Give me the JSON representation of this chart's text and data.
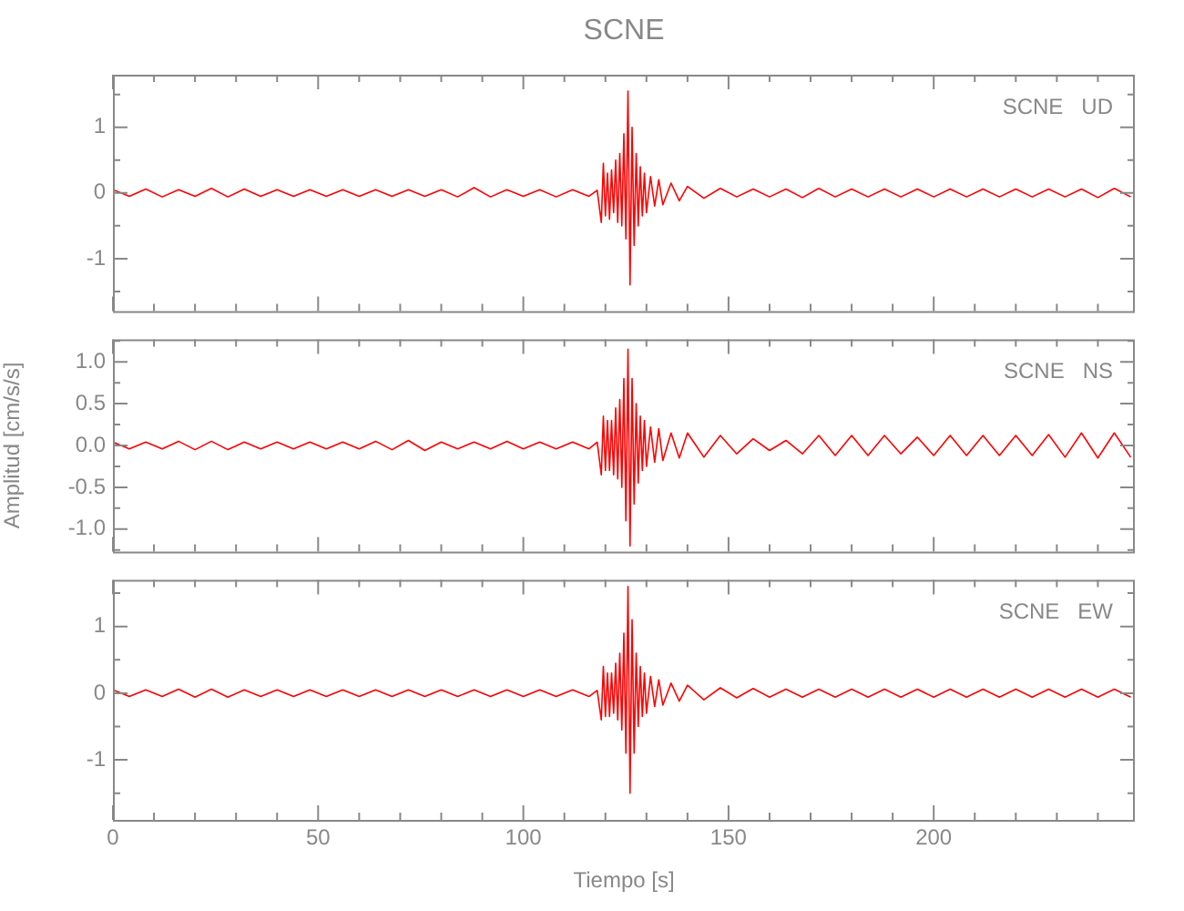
{
  "chart_data": [
    {
      "type": "line",
      "title": "SCNE",
      "annotations": [
        "SCNE   UD"
      ],
      "tick_labels": "y",
      "xlim": [
        0,
        249
      ],
      "xticks": [
        0,
        {
          "value": 10,
          "label": null
        },
        {
          "value": 20,
          "label": null
        },
        {
          "value": 30,
          "label": null
        },
        {
          "value": 40,
          "label": null
        },
        50,
        {
          "value": 60,
          "label": null
        },
        {
          "value": 70,
          "label": null
        },
        {
          "value": 80,
          "label": null
        },
        {
          "value": 90,
          "label": null
        },
        100,
        {
          "value": 110,
          "label": null
        },
        {
          "value": 120,
          "label": null
        },
        {
          "value": 130,
          "label": null
        },
        {
          "value": 140,
          "label": null
        },
        150,
        {
          "value": 160,
          "label": null
        },
        {
          "value": 170,
          "label": null
        },
        {
          "value": 180,
          "label": null
        },
        {
          "value": 190,
          "label": null
        },
        200,
        {
          "value": 210,
          "label": null
        },
        {
          "value": 220,
          "label": null
        },
        {
          "value": 230,
          "label": null
        },
        {
          "value": 240,
          "label": null
        }
      ],
      "ylim": [
        -1.8,
        1.8
      ],
      "yticks": [
        {
          "value": -1.5,
          "label": null
        },
        -1,
        {
          "value": -0.5,
          "label": null
        },
        0,
        {
          "value": 0.5,
          "label": null
        },
        1,
        {
          "value": 1.5,
          "label": null
        }
      ],
      "x": [
        0,
        4,
        8,
        12,
        16,
        20,
        24,
        28,
        32,
        36,
        40,
        44,
        48,
        52,
        56,
        60,
        64,
        68,
        72,
        76,
        80,
        84,
        88,
        92,
        96,
        100,
        104,
        108,
        112,
        116,
        118,
        119,
        119.5,
        120,
        120.5,
        121,
        121.5,
        122,
        122.5,
        123,
        123.5,
        124,
        124.5,
        125,
        125.5,
        126,
        126.5,
        127,
        127.5,
        128,
        128.5,
        129,
        129.5,
        130,
        131,
        132,
        133,
        134,
        136,
        138,
        140,
        144,
        148,
        152,
        156,
        160,
        164,
        168,
        172,
        176,
        180,
        184,
        188,
        192,
        196,
        200,
        204,
        208,
        212,
        216,
        220,
        224,
        228,
        232,
        236,
        240,
        244,
        248
      ],
      "series": [
        {
          "color": "#ff0000",
          "values": [
            0.05,
            -0.05,
            0.06,
            -0.06,
            0.05,
            -0.05,
            0.07,
            -0.06,
            0.06,
            -0.05,
            0.05,
            -0.05,
            0.05,
            -0.05,
            0.05,
            -0.05,
            0.05,
            -0.05,
            0.05,
            -0.05,
            0.05,
            -0.06,
            0.08,
            -0.06,
            0.05,
            -0.05,
            0.05,
            -0.06,
            0.05,
            -0.05,
            0.04,
            -0.45,
            0.45,
            -0.35,
            0.3,
            -0.4,
            0.35,
            -0.3,
            0.5,
            -0.45,
            0.6,
            -0.5,
            0.9,
            -0.7,
            1.55,
            -1.4,
            1.0,
            -0.8,
            0.6,
            -0.5,
            0.4,
            -0.35,
            0.3,
            -0.3,
            0.25,
            -0.2,
            0.2,
            -0.18,
            0.15,
            -0.12,
            0.1,
            -0.08,
            0.07,
            -0.06,
            0.06,
            -0.06,
            0.06,
            -0.07,
            0.07,
            -0.06,
            0.06,
            -0.06,
            0.06,
            -0.06,
            0.06,
            -0.06,
            0.06,
            -0.06,
            0.06,
            -0.06,
            0.06,
            -0.06,
            0.06,
            -0.06,
            0.06,
            -0.07,
            0.07,
            -0.06
          ]
        }
      ]
    },
    {
      "type": "line",
      "annotations": [
        "SCNE   NS"
      ],
      "ylabel": "Amplitud [cm/s/s]",
      "tick_labels": "y",
      "xlim": [
        0,
        249
      ],
      "xticks": [
        0,
        {
          "value": 10,
          "label": null
        },
        {
          "value": 20,
          "label": null
        },
        {
          "value": 30,
          "label": null
        },
        {
          "value": 40,
          "label": null
        },
        50,
        {
          "value": 60,
          "label": null
        },
        {
          "value": 70,
          "label": null
        },
        {
          "value": 80,
          "label": null
        },
        {
          "value": 90,
          "label": null
        },
        100,
        {
          "value": 110,
          "label": null
        },
        {
          "value": 120,
          "label": null
        },
        {
          "value": 130,
          "label": null
        },
        {
          "value": 140,
          "label": null
        },
        150,
        {
          "value": 160,
          "label": null
        },
        {
          "value": 170,
          "label": null
        },
        {
          "value": 180,
          "label": null
        },
        {
          "value": 190,
          "label": null
        },
        200,
        {
          "value": 210,
          "label": null
        },
        {
          "value": 220,
          "label": null
        },
        {
          "value": 230,
          "label": null
        },
        {
          "value": 240,
          "label": null
        }
      ],
      "ylim": [
        -1.27,
        1.27
      ],
      "yticks": [
        {
          "value": -1.25,
          "label": null
        },
        {
          "value": -1,
          "label": "-1.0"
        },
        {
          "value": -0.75,
          "label": null
        },
        {
          "value": -0.5,
          "label": "-0.5"
        },
        {
          "value": -0.25,
          "label": null
        },
        {
          "value": 0,
          "label": "0.0"
        },
        {
          "value": 0.25,
          "label": null
        },
        {
          "value": 0.5,
          "label": "0.5"
        },
        {
          "value": 0.75,
          "label": null
        },
        {
          "value": 1,
          "label": "1.0"
        },
        {
          "value": 1.25,
          "label": null
        }
      ],
      "x": [
        0,
        4,
        8,
        12,
        16,
        20,
        24,
        28,
        32,
        36,
        40,
        44,
        48,
        52,
        56,
        60,
        64,
        68,
        72,
        76,
        80,
        84,
        88,
        92,
        96,
        100,
        104,
        108,
        112,
        116,
        118,
        119,
        119.5,
        120,
        120.5,
        121,
        121.5,
        122,
        122.5,
        123,
        123.5,
        124,
        124.5,
        125,
        125.5,
        126,
        126.5,
        127,
        127.5,
        128,
        128.5,
        129,
        129.5,
        130,
        131,
        132,
        133,
        134,
        136,
        138,
        140,
        144,
        148,
        152,
        156,
        160,
        164,
        168,
        172,
        176,
        180,
        184,
        188,
        192,
        196,
        200,
        204,
        208,
        212,
        216,
        220,
        224,
        228,
        232,
        236,
        240,
        244,
        248
      ],
      "series": [
        {
          "color": "#ff0000",
          "values": [
            0.04,
            -0.04,
            0.04,
            -0.04,
            0.05,
            -0.05,
            0.05,
            -0.05,
            0.04,
            -0.04,
            0.04,
            -0.04,
            0.04,
            -0.04,
            0.04,
            -0.04,
            0.05,
            -0.05,
            0.06,
            -0.06,
            0.04,
            -0.04,
            0.04,
            -0.04,
            0.05,
            -0.04,
            0.04,
            -0.04,
            0.04,
            -0.04,
            0.04,
            -0.35,
            0.35,
            -0.3,
            0.3,
            -0.3,
            0.3,
            -0.35,
            0.45,
            -0.4,
            0.55,
            -0.5,
            0.8,
            -0.9,
            1.15,
            -1.2,
            0.8,
            -0.7,
            0.5,
            -0.45,
            0.35,
            -0.3,
            0.3,
            -0.25,
            0.22,
            -0.2,
            0.2,
            -0.18,
            0.15,
            -0.15,
            0.15,
            -0.14,
            0.12,
            -0.1,
            0.08,
            -0.06,
            0.06,
            -0.1,
            0.12,
            -0.12,
            0.12,
            -0.12,
            0.12,
            -0.1,
            0.1,
            -0.12,
            0.12,
            -0.12,
            0.12,
            -0.12,
            0.12,
            -0.12,
            0.13,
            -0.14,
            0.15,
            -0.15,
            0.15,
            -0.14
          ]
        }
      ]
    },
    {
      "type": "line",
      "annotations": [
        "SCNE   EW"
      ],
      "xlabel": "Tiempo [s]",
      "xlim": [
        0,
        249
      ],
      "xticks": [
        0,
        {
          "value": 10,
          "label": null
        },
        {
          "value": 20,
          "label": null
        },
        {
          "value": 30,
          "label": null
        },
        {
          "value": 40,
          "label": null
        },
        50,
        {
          "value": 60,
          "label": null
        },
        {
          "value": 70,
          "label": null
        },
        {
          "value": 80,
          "label": null
        },
        {
          "value": 90,
          "label": null
        },
        100,
        {
          "value": 110,
          "label": null
        },
        {
          "value": 120,
          "label": null
        },
        {
          "value": 130,
          "label": null
        },
        {
          "value": 140,
          "label": null
        },
        150,
        {
          "value": 160,
          "label": null
        },
        {
          "value": 170,
          "label": null
        },
        {
          "value": 180,
          "label": null
        },
        {
          "value": 190,
          "label": null
        },
        200,
        {
          "value": 210,
          "label": null
        },
        {
          "value": 220,
          "label": null
        },
        {
          "value": 230,
          "label": null
        },
        {
          "value": 240,
          "label": null
        }
      ],
      "ylim": [
        -1.9,
        1.7
      ],
      "yticks": [
        {
          "value": -1.5,
          "label": null
        },
        -1,
        {
          "value": -0.5,
          "label": null
        },
        0,
        {
          "value": 0.5,
          "label": null
        },
        1,
        {
          "value": 1.5,
          "label": null
        }
      ],
      "x": [
        0,
        4,
        8,
        12,
        16,
        20,
        24,
        28,
        32,
        36,
        40,
        44,
        48,
        52,
        56,
        60,
        64,
        68,
        72,
        76,
        80,
        84,
        88,
        92,
        96,
        100,
        104,
        108,
        112,
        116,
        118,
        119,
        119.5,
        120,
        120.5,
        121,
        121.5,
        122,
        122.5,
        123,
        123.5,
        124,
        124.5,
        125,
        125.5,
        126,
        126.5,
        127,
        127.5,
        128,
        128.5,
        129,
        129.5,
        130,
        131,
        132,
        133,
        134,
        136,
        138,
        140,
        144,
        148,
        152,
        156,
        160,
        164,
        168,
        172,
        176,
        180,
        184,
        188,
        192,
        196,
        200,
        204,
        208,
        212,
        216,
        220,
        224,
        228,
        232,
        236,
        240,
        244,
        248
      ],
      "series": [
        {
          "color": "#ff0000",
          "values": [
            0.05,
            -0.05,
            0.05,
            -0.05,
            0.06,
            -0.06,
            0.06,
            -0.06,
            0.05,
            -0.05,
            0.05,
            -0.05,
            0.05,
            -0.05,
            0.05,
            -0.05,
            0.05,
            -0.05,
            0.05,
            -0.05,
            0.05,
            -0.05,
            0.05,
            -0.05,
            0.05,
            -0.05,
            0.05,
            -0.05,
            0.05,
            -0.05,
            0.04,
            -0.4,
            0.4,
            -0.35,
            0.3,
            -0.35,
            0.3,
            -0.3,
            0.45,
            -0.4,
            0.6,
            -0.55,
            0.9,
            -0.9,
            1.6,
            -1.5,
            1.1,
            -0.9,
            0.6,
            -0.5,
            0.4,
            -0.35,
            0.3,
            -0.3,
            0.25,
            -0.2,
            0.2,
            -0.18,
            0.15,
            -0.12,
            0.12,
            -0.1,
            0.08,
            -0.07,
            0.07,
            -0.06,
            0.06,
            -0.06,
            0.06,
            -0.06,
            0.06,
            -0.06,
            0.06,
            -0.06,
            0.06,
            -0.06,
            0.06,
            -0.06,
            0.06,
            -0.06,
            0.06,
            -0.06,
            0.06,
            -0.06,
            0.06,
            -0.06,
            0.06,
            -0.06
          ]
        }
      ]
    }
  ]
}
